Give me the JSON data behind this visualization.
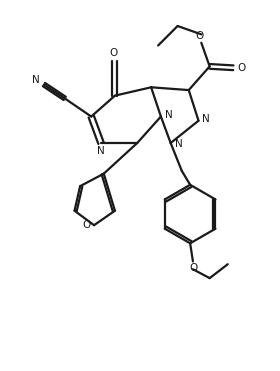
{
  "bg_color": "#ffffff",
  "line_color": "#1a1a1a",
  "line_width": 1.6,
  "figsize": [
    2.8,
    3.71
  ],
  "dpi": 100,
  "xlim": [
    0,
    10
  ],
  "ylim": [
    0,
    13.25
  ],
  "font_size": 7.5
}
